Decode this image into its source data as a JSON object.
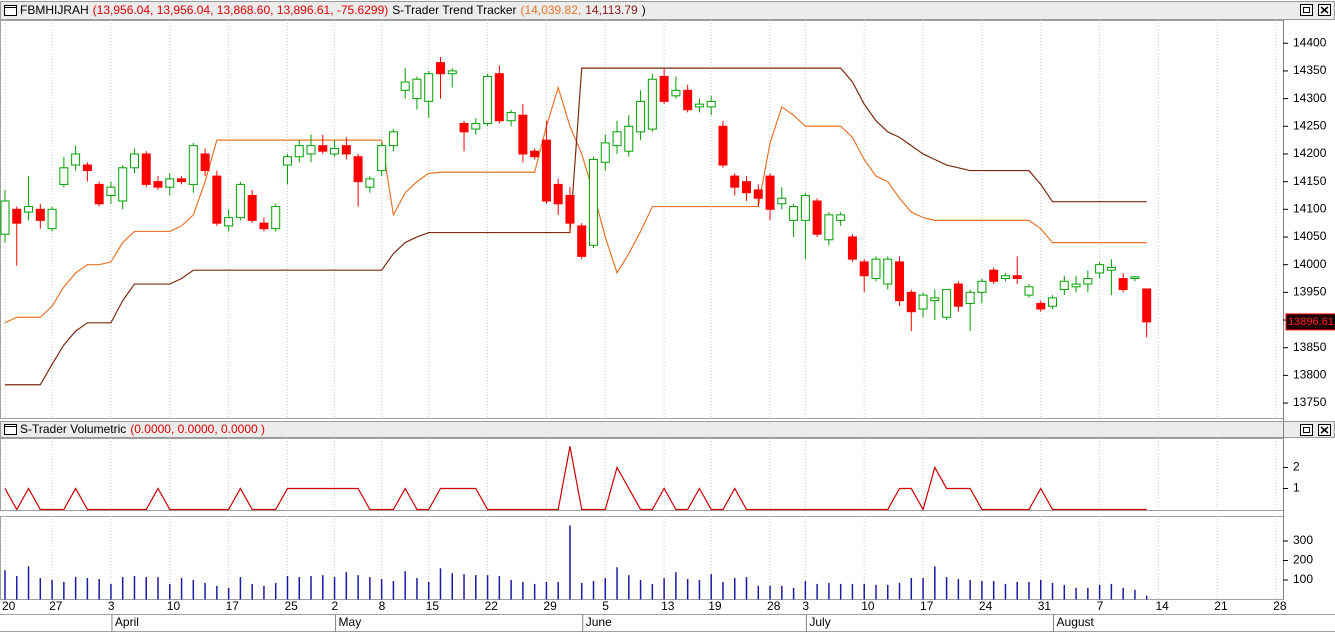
{
  "chart_data": [
    {
      "type": "candlestick",
      "header": [
        {
          "text": "FBMHIJRAH",
          "color": "#000000"
        },
        {
          "text": "(13,956.04, 13,956.04, 13,868.60, 13,896.61, -75.6299)",
          "color": "#e00000"
        },
        {
          "text": "S-Trader Trend Tracker",
          "color": "#000000"
        },
        {
          "text": "(14,039.82,",
          "color": "#e8752a"
        },
        {
          "text": "14,113.79",
          "color": "#8b1a1a"
        },
        {
          "text": ")",
          "color": "#000000"
        }
      ],
      "open": [
        14055,
        14100,
        14095,
        14100,
        14065,
        14145,
        14180,
        14180,
        14145,
        14125,
        14115,
        14175,
        14200,
        14150,
        14140,
        14155,
        14145,
        14200,
        14160,
        14070,
        14085,
        14125,
        14075,
        14065,
        14180,
        14195,
        14200,
        14215,
        14200,
        14215,
        14195,
        14140,
        14170,
        14215,
        14315,
        14300,
        14295,
        14365,
        14345,
        14255,
        14245,
        14255,
        14345,
        14260,
        14270,
        14205,
        14225,
        14145,
        14125,
        14070,
        14035,
        14185,
        14215,
        14205,
        14240,
        14245,
        14340,
        14305,
        14315,
        14285,
        14285,
        14250,
        14160,
        14150,
        14135,
        14160,
        14110,
        14080,
        14080,
        14115,
        14045,
        14080,
        14050,
        14005,
        13975,
        13965,
        14005,
        13950,
        13920,
        13935,
        13905,
        13965,
        13930,
        13950,
        13990,
        13975,
        13980,
        13945,
        13930,
        13925,
        13955,
        13960,
        13965,
        13985,
        13990,
        13975,
        13975,
        13956.04,
        null,
        null,
        null,
        null,
        null,
        null,
        null,
        null,
        null,
        null,
        null
      ],
      "high": [
        14135,
        14105,
        14160,
        14110,
        14105,
        14195,
        14215,
        14185,
        14150,
        14150,
        14180,
        14210,
        14205,
        14160,
        14165,
        14160,
        14220,
        14210,
        14170,
        14100,
        14150,
        14135,
        14085,
        14110,
        14200,
        14225,
        14235,
        14235,
        14225,
        14230,
        14200,
        14160,
        14220,
        14245,
        14355,
        14340,
        14350,
        14375,
        14355,
        14260,
        14265,
        14345,
        14360,
        14280,
        14290,
        14210,
        14260,
        14155,
        14140,
        14075,
        14195,
        14235,
        14260,
        14270,
        14315,
        14345,
        14355,
        14340,
        14325,
        14300,
        14305,
        14260,
        14165,
        14160,
        14145,
        14165,
        14140,
        14110,
        14130,
        14120,
        14095,
        14095,
        14055,
        14010,
        14015,
        14015,
        14015,
        13955,
        13950,
        13955,
        13955,
        13970,
        13955,
        13975,
        13995,
        13985,
        14015,
        13965,
        13935,
        13945,
        13980,
        13980,
        13990,
        14005,
        14010,
        13985,
        13980,
        13956.04,
        null,
        null,
        null,
        null,
        null,
        null,
        null,
        null,
        null,
        null,
        null
      ],
      "low": [
        14040,
        13998,
        14080,
        14065,
        14060,
        14140,
        14170,
        14150,
        14105,
        14110,
        14100,
        14165,
        14140,
        14135,
        14125,
        14145,
        14130,
        14160,
        14070,
        14060,
        14080,
        14075,
        14060,
        14060,
        14145,
        14185,
        14185,
        14200,
        14195,
        14190,
        14105,
        14130,
        14160,
        14205,
        14300,
        14280,
        14265,
        14300,
        14320,
        14205,
        14235,
        14250,
        14255,
        14250,
        14185,
        14190,
        14110,
        14090,
        14060,
        14010,
        14030,
        14170,
        14200,
        14195,
        14225,
        14240,
        14290,
        14300,
        14275,
        14275,
        14270,
        14175,
        14125,
        14115,
        14105,
        14080,
        14100,
        14050,
        14010,
        14050,
        14035,
        14070,
        14005,
        13950,
        13970,
        13955,
        13925,
        13880,
        13905,
        13900,
        13900,
        13915,
        13880,
        13930,
        13965,
        13970,
        13965,
        13940,
        13915,
        13920,
        13945,
        13950,
        13950,
        13975,
        13945,
        13950,
        13970,
        13868.6,
        null,
        null,
        null,
        null,
        null,
        null,
        null,
        null,
        null,
        null,
        null
      ],
      "close": [
        14115,
        14075,
        14105,
        14080,
        14100,
        14175,
        14200,
        14170,
        14110,
        14140,
        14175,
        14200,
        14145,
        14140,
        14155,
        14150,
        14215,
        14170,
        14075,
        14085,
        14145,
        14080,
        14065,
        14105,
        14195,
        14215,
        14215,
        14205,
        14210,
        14200,
        14150,
        14155,
        14215,
        14240,
        14330,
        14335,
        14345,
        14345,
        14350,
        14240,
        14255,
        14340,
        14260,
        14275,
        14200,
        14195,
        14115,
        14110,
        14075,
        14015,
        14190,
        14220,
        14240,
        14250,
        14295,
        14335,
        14295,
        14315,
        14280,
        14290,
        14295,
        14180,
        14140,
        14130,
        14120,
        14100,
        14120,
        14105,
        14125,
        14055,
        14090,
        14090,
        14010,
        13980,
        14010,
        14010,
        13935,
        13915,
        13945,
        13940,
        13955,
        13925,
        13950,
        13970,
        13970,
        13980,
        13975,
        13960,
        13920,
        13940,
        13970,
        13965,
        13975,
        14000,
        13995,
        13955,
        13978,
        13896.61,
        null,
        null,
        null,
        null,
        null,
        null,
        null,
        null,
        null,
        null,
        null
      ],
      "up_color": "#00a000",
      "down_color": "#ff0000",
      "series": [
        {
          "color": "#e8752a",
          "values": [
            13895,
            13905,
            13905,
            13905,
            13925,
            13960,
            13985,
            14000,
            14000,
            14005,
            14040,
            14060,
            14060,
            14060,
            14060,
            14070,
            14090,
            14150,
            14225,
            14225,
            14225,
            14225,
            14225,
            14225,
            14225,
            14225,
            14225,
            14225,
            14225,
            14225,
            14225,
            14225,
            14225,
            14090,
            14130,
            14150,
            14165,
            14167,
            14167,
            14167,
            14167,
            14167,
            14167,
            14167,
            14167,
            14167,
            14250,
            14320,
            14250,
            14200,
            14130,
            14050,
            13985,
            14020,
            14060,
            14105,
            14105,
            14105,
            14105,
            14105,
            14105,
            14105,
            14105,
            14105,
            14105,
            14220,
            14285,
            14270,
            14250,
            14250,
            14250,
            14250,
            14230,
            14190,
            14160,
            14150,
            14120,
            14095,
            14085,
            14080,
            14080,
            14080,
            14080,
            14080,
            14080,
            14080,
            14080,
            14080,
            14065,
            14039.82,
            14039.82,
            14039.82,
            14039.82,
            14039.82,
            14039.82,
            14039.82,
            14039.82,
            14039.82,
            null,
            null,
            null,
            null,
            null,
            null,
            null,
            null,
            null,
            null,
            null
          ]
        },
        {
          "color": "#7b2b0f",
          "values": [
            13783,
            13783,
            13783,
            13783,
            13820,
            13855,
            13880,
            13895,
            13895,
            13895,
            13935,
            13965,
            13965,
            13965,
            13965,
            13975,
            13990,
            13990,
            13990,
            13990,
            13990,
            13990,
            13990,
            13990,
            13990,
            13990,
            13990,
            13990,
            13990,
            13990,
            13990,
            13990,
            13990,
            14020,
            14040,
            14050,
            14058,
            14058,
            14058,
            14058,
            14058,
            14058,
            14058,
            14058,
            14058,
            14058,
            14058,
            14058,
            14058,
            14355,
            14355,
            14355,
            14355,
            14355,
            14355,
            14355,
            14355,
            14355,
            14355,
            14355,
            14355,
            14355,
            14355,
            14355,
            14355,
            14355,
            14355,
            14355,
            14355,
            14355,
            14355,
            14355,
            14330,
            14290,
            14260,
            14240,
            14230,
            14215,
            14200,
            14190,
            14180,
            14175,
            14170,
            14170,
            14170,
            14170,
            14170,
            14170,
            14145,
            14113.79,
            14113.79,
            14113.79,
            14113.79,
            14113.79,
            14113.79,
            14113.79,
            14113.79,
            14113.79,
            null,
            null,
            null,
            null,
            null,
            null,
            null,
            null,
            null,
            null,
            null
          ]
        }
      ],
      "last_label": "13896.61",
      "ylim": [
        13723,
        14442
      ],
      "yticks": [
        14400,
        14350,
        14300,
        14250,
        14200,
        14150,
        14100,
        14050,
        14000,
        13950,
        13900,
        13850,
        13800,
        13750
      ]
    },
    {
      "type": "line",
      "header": [
        {
          "text": "S-Trader Volumetric",
          "color": "#000000"
        },
        {
          "text": "(0.0000, 0.0000, 0.0000 )",
          "color": "#e00000"
        }
      ],
      "series": [
        {
          "color": "#cc0000",
          "values": [
            1,
            0,
            1,
            0,
            0,
            0,
            1,
            0,
            0,
            0,
            0,
            0,
            0,
            1,
            0,
            0,
            0,
            0,
            0,
            0,
            1,
            0,
            0,
            0,
            1,
            1,
            1,
            1,
            1,
            1,
            1,
            0,
            0,
            0,
            1,
            0,
            0,
            1,
            1,
            1,
            1,
            0,
            0,
            0,
            0,
            0,
            0,
            0,
            3,
            0,
            0,
            0,
            2,
            1,
            0,
            0,
            1,
            0,
            0,
            1,
            0,
            0,
            1,
            0,
            0,
            0,
            0,
            0,
            0,
            0,
            0,
            0,
            0,
            0,
            0,
            0,
            1,
            1,
            0,
            2,
            1,
            1,
            1,
            0,
            0,
            0,
            0,
            0,
            1,
            0,
            0,
            0,
            0,
            0,
            0,
            0,
            0,
            0,
            null,
            null,
            null,
            null,
            null,
            null,
            null,
            null,
            null,
            null,
            null
          ]
        }
      ],
      "ylim": [
        0,
        3.4
      ],
      "yticks": [
        1,
        2
      ]
    },
    {
      "type": "bar",
      "categories": [
        "20",
        null,
        null,
        null,
        "27",
        null,
        null,
        null,
        null,
        "3",
        null,
        null,
        null,
        null,
        "10",
        null,
        null,
        null,
        null,
        "17",
        null,
        null,
        null,
        null,
        "25",
        null,
        null,
        null,
        "2",
        null,
        null,
        null,
        "8",
        null,
        null,
        null,
        "15",
        null,
        null,
        null,
        null,
        "22",
        null,
        null,
        null,
        null,
        "29",
        null,
        null,
        null,
        null,
        "5",
        null,
        null,
        null,
        null,
        "13",
        null,
        null,
        null,
        "19",
        null,
        null,
        null,
        null,
        "28",
        null,
        null,
        "3",
        null,
        null,
        null,
        null,
        "10",
        null,
        null,
        null,
        null,
        "17",
        null,
        null,
        null,
        null,
        "24",
        null,
        null,
        null,
        null,
        "31",
        null,
        null,
        null,
        null,
        "7",
        null,
        null,
        null,
        null,
        "14",
        null,
        null,
        null,
        null,
        "21",
        null,
        null,
        null,
        null,
        "28"
      ],
      "months": [
        null,
        null,
        null,
        null,
        null,
        null,
        null,
        null,
        null,
        "April",
        null,
        null,
        null,
        null,
        null,
        null,
        null,
        null,
        null,
        null,
        null,
        null,
        null,
        null,
        null,
        null,
        null,
        null,
        "May",
        null,
        null,
        null,
        null,
        null,
        null,
        null,
        null,
        null,
        null,
        null,
        null,
        null,
        null,
        null,
        null,
        null,
        null,
        null,
        null,
        "June",
        null,
        null,
        null,
        null,
        null,
        null,
        null,
        null,
        null,
        null,
        null,
        null,
        null,
        null,
        null,
        null,
        null,
        null,
        "July",
        null,
        null,
        null,
        null,
        null,
        null,
        null,
        null,
        null,
        null,
        null,
        null,
        null,
        null,
        null,
        null,
        null,
        null,
        null,
        null,
        "August",
        null,
        null,
        null,
        null,
        null,
        null,
        null,
        null,
        null,
        null,
        null,
        null,
        null,
        null,
        null,
        null,
        null,
        null,
        null
      ],
      "values": [
        150,
        120,
        170,
        110,
        100,
        90,
        115,
        110,
        105,
        80,
        115,
        120,
        115,
        115,
        80,
        110,
        100,
        85,
        70,
        60,
        115,
        80,
        70,
        85,
        120,
        115,
        120,
        125,
        115,
        140,
        125,
        115,
        105,
        95,
        145,
        110,
        90,
        160,
        135,
        130,
        125,
        125,
        120,
        100,
        90,
        80,
        90,
        90,
        380,
        85,
        95,
        110,
        165,
        125,
        100,
        80,
        110,
        140,
        105,
        100,
        130,
        90,
        110,
        115,
        70,
        70,
        70,
        60,
        95,
        80,
        85,
        80,
        80,
        80,
        75,
        75,
        85,
        110,
        110,
        170,
        115,
        105,
        100,
        95,
        95,
        80,
        90,
        90,
        100,
        85,
        75,
        60,
        60,
        75,
        80,
        60,
        50,
        20,
        null,
        null,
        null,
        null,
        null,
        null,
        null,
        null,
        null,
        null,
        null
      ],
      "color": "#1a1aa0",
      "ylim": [
        0,
        428
      ],
      "yticks": [
        100,
        200,
        300
      ],
      "grid": "x"
    }
  ]
}
